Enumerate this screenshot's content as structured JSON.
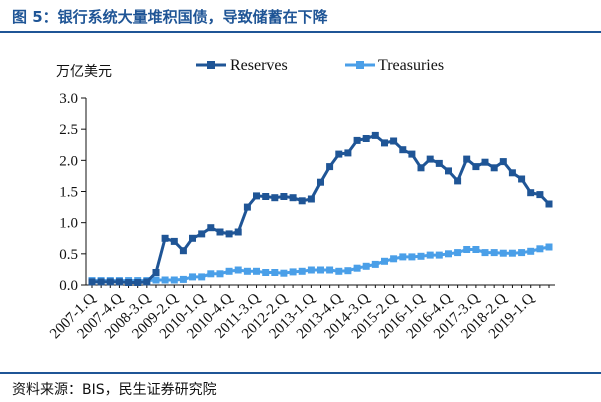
{
  "figure": {
    "title": "图 5：银行系统大量堆积国债，导致储蓄在下降",
    "source": "资料来源：BIS，民生证券研究院"
  },
  "chart_data": {
    "type": "line",
    "ylabel": "万亿美元",
    "ylim": [
      0,
      3.0
    ],
    "yticks": [
      "0.0",
      "0.5",
      "1.0",
      "1.5",
      "2.0",
      "2.5",
      "3.0"
    ],
    "xtick_labels": [
      "2007-1.Q",
      "2007-4.Q",
      "2008-3.Q",
      "2009-2.Q",
      "2010-1.Q",
      "2010-4.Q",
      "2011-3.Q",
      "2012-2.Q",
      "2013-1.Q",
      "2013-4.Q",
      "2014-3.Q",
      "2015-2.Q",
      "2016-1.Q",
      "2016-4.Q",
      "2017-3.Q",
      "2018-2.Q",
      "2019-1.Q"
    ],
    "xtick_every": 3,
    "series": [
      {
        "name": "Reserves",
        "color": "#1f5596",
        "values": [
          0.05,
          0.05,
          0.05,
          0.05,
          0.04,
          0.04,
          0.05,
          0.2,
          0.75,
          0.7,
          0.55,
          0.75,
          0.82,
          0.92,
          0.85,
          0.82,
          0.85,
          1.25,
          1.43,
          1.42,
          1.4,
          1.42,
          1.4,
          1.35,
          1.38,
          1.65,
          1.9,
          2.1,
          2.12,
          2.32,
          2.35,
          2.4,
          2.28,
          2.31,
          2.17,
          2.1,
          1.88,
          2.02,
          1.95,
          1.83,
          1.67,
          2.02,
          1.9,
          1.97,
          1.88,
          1.98,
          1.8,
          1.7,
          1.48,
          1.45,
          1.3
        ]
      },
      {
        "name": "Treasuries",
        "color": "#4a9fe8",
        "values": [
          0.07,
          0.07,
          0.07,
          0.07,
          0.07,
          0.07,
          0.07,
          0.08,
          0.08,
          0.08,
          0.09,
          0.13,
          0.13,
          0.18,
          0.18,
          0.22,
          0.24,
          0.22,
          0.22,
          0.2,
          0.2,
          0.19,
          0.21,
          0.22,
          0.24,
          0.24,
          0.24,
          0.22,
          0.23,
          0.27,
          0.3,
          0.33,
          0.38,
          0.42,
          0.45,
          0.45,
          0.46,
          0.48,
          0.48,
          0.5,
          0.52,
          0.57,
          0.57,
          0.52,
          0.52,
          0.51,
          0.51,
          0.52,
          0.54,
          0.58,
          0.61
        ]
      }
    ]
  }
}
